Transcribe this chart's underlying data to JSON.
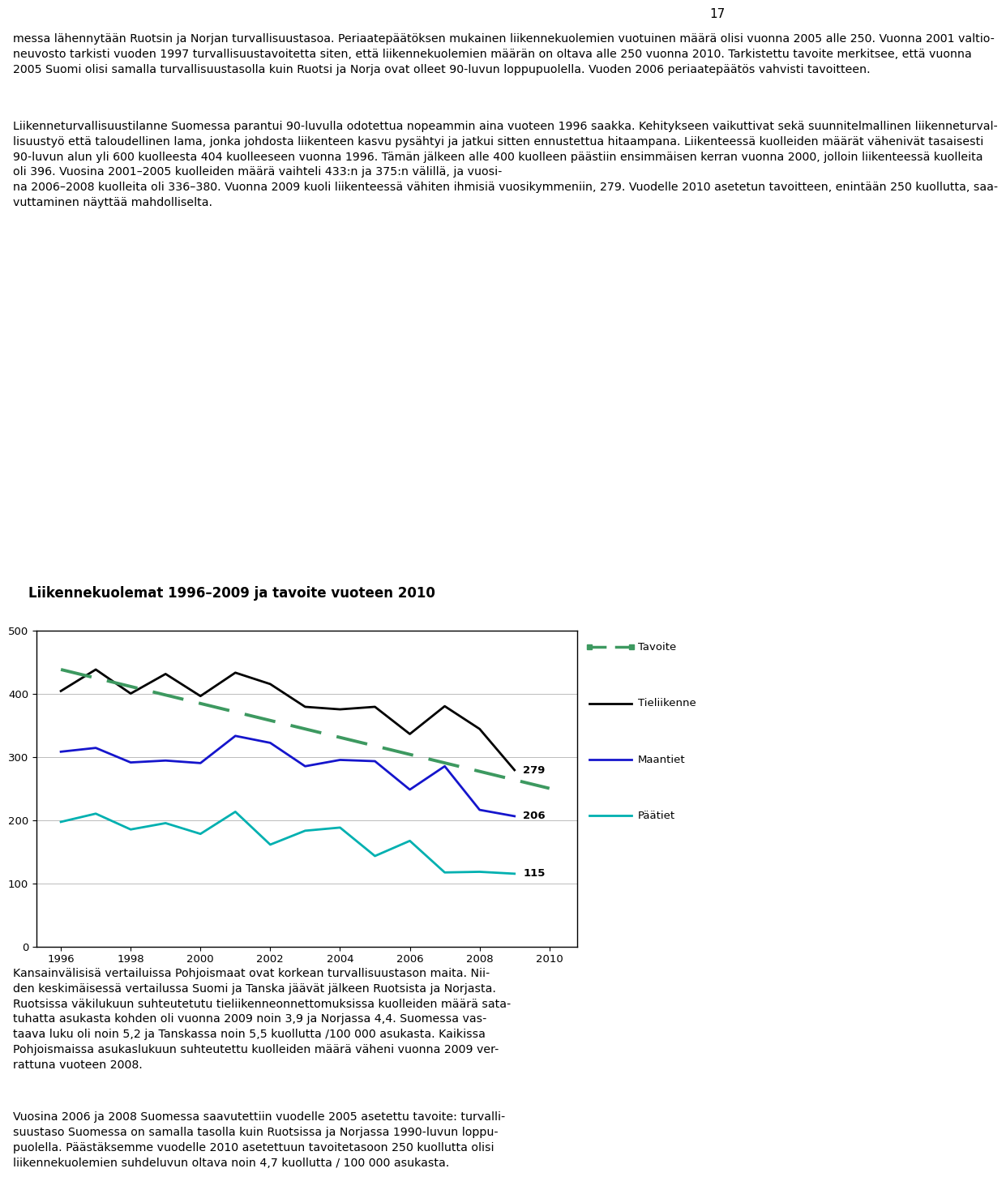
{
  "title": "Liikennekuolemat 1996–2009 ja tavoite vuoteen 2010",
  "page_number": "17",
  "para1": "messa lähennytään Ruotsin ja Norjan turvallisuustasoa. Periaatepäätöksen mukainen liikennekuolemien vuotuinen määrä olisi vuonna 2005 alle 250. Vuonna 2001 valtio-\nneuvosto tarkisti vuoden 1997 turvallisuustavoitetta siten, että liikennekuolemien määrän on oltava alle 250 vuonna 2010. Tarkistettu tavoite merkitsee, että vuonna\n2005 Suomi olisi samalla turvallisuustasolla kuin Ruotsi ja Norja ovat olleet 90-luvun loppupuolella. Vuoden 2006 periaatepäätös vahvisti tavoitteen.",
  "para2": "Liikenneturvallisuustilanne Suomessa parantui 90-luvulla odotettua nopeammin aina vuoteen 1996 saakka. Kehitykseen vaikuttivat sekä suunnitelmallinen liikenneturval-\nlisuustyö että taloudellinen lama, jonka johdosta liikenteen kasvu pysähtyi ja jatkui sitten ennustettua hitaampana. Liikenteessä kuolleiden määrät vähenivät tasaisesti\n90-luvun alun yli 600 kuolleesta 404 kuolleeseen vuonna 1996. Tämän jälkeen alle 400 kuolleen päästiin ensimmäisen kerran vuonna 2000, jolloin liikenteessä kuolleita\noli 396. Vuosina 2001–2005 kuolleiden määrä vaihteli 433:n ja 375:n välillä, ja vuosi-\nna 2006–2008 kuolleita oli 336–380. Vuonna 2009 kuoli liikenteessä vähiten ihmisiä vuosikymmeniin, 279. Vuodelle 2010 asetetun tavoitteen, enintään 250 kuollutta, saa-\nvuttaminen näyttää mahdolliselta.",
  "para3": "Kansainvälisisä vertailuissa Pohjoismaat ovat korkean turvallisuustason maita. Nii-\nden keskimäisessä vertailussa Suomi ja Tanska jäävät jälkeen Ruotsista ja Norjasta.\nRuotsissa väkilukuun suhteutetutu tieliikenneonnettomuksissa kuolleiden määrä sata-\ntuhatta asukasta kohden oli vuonna 2009 noin 3,9 ja Norjassa 4,4. Suomessa vas-\ntaava luku oli noin 5,2 ja Tanskassa noin 5,5 kuollutta /100 000 asukasta. Kaikissa\nPohjoismaissa asukaslukuun suhteutettu kuolleiden määrä väheni vuonna 2009 ver-\nrattuna vuoteen 2008.",
  "para4": "Vuosina 2006 ja 2008 Suomessa saavutettiin vuodelle 2005 asetettu tavoite: turvalli-\nsuustaso Suomessa on samalla tasolla kuin Ruotsissa ja Norjassa 1990-luvun loppu-\npuolella. Päästäksemme vuodelle 2010 asetettuun tavoitetasoon 250 kuollutta olisi\nliikennekuolemien suhdeluvun oltava noin 4,7 kuollutta / 100 000 asukasta.",
  "years": [
    1996,
    1997,
    1998,
    1999,
    2000,
    2001,
    2002,
    2003,
    2004,
    2005,
    2006,
    2007,
    2008,
    2009
  ],
  "tieliikenne": [
    404,
    438,
    400,
    431,
    396,
    433,
    415,
    379,
    375,
    379,
    336,
    380,
    344,
    279
  ],
  "maantiet": [
    308,
    314,
    291,
    294,
    290,
    333,
    322,
    285,
    295,
    293,
    248,
    285,
    216,
    206
  ],
  "paatiet": [
    197,
    210,
    185,
    195,
    178,
    213,
    161,
    183,
    188,
    143,
    167,
    117,
    118,
    115
  ],
  "tavoite_years": [
    1996,
    2010
  ],
  "tavoite_values": [
    438,
    250
  ],
  "colors": {
    "tieliikenne": "#000000",
    "maantiet": "#1515cc",
    "paatiet": "#00b0b0",
    "tavoite": "#3d9960"
  },
  "ylim": [
    0,
    500
  ],
  "yticks": [
    0,
    100,
    200,
    300,
    400,
    500
  ],
  "xticks": [
    1996,
    1998,
    2000,
    2002,
    2004,
    2006,
    2008,
    2010
  ]
}
